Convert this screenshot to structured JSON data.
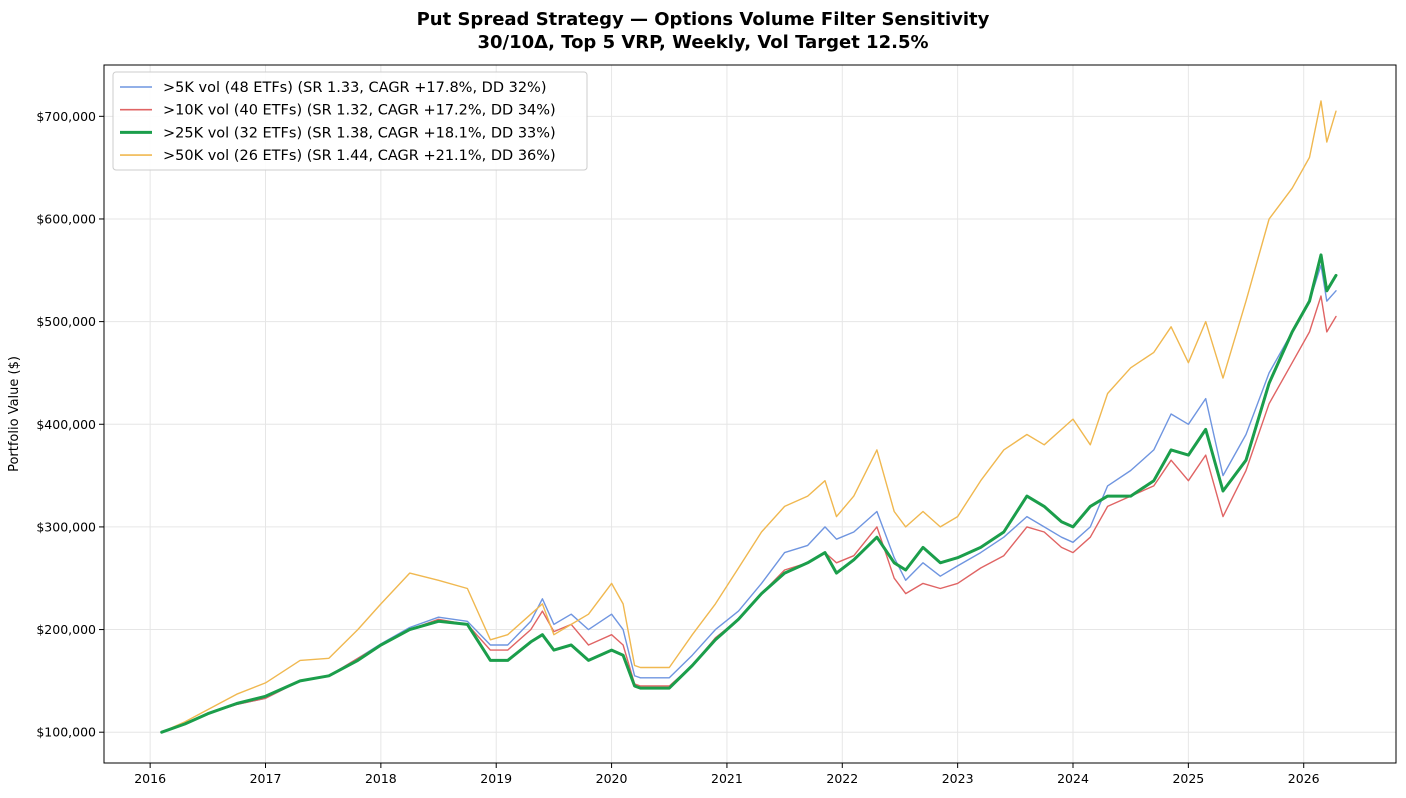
{
  "chart_data": {
    "type": "line",
    "title": "Put Spread Strategy — Options Volume Filter Sensitivity",
    "subtitle": "30/10Δ, Top 5 VRP, Weekly, Vol Target 12.5%",
    "xlabel": "",
    "ylabel": "Portfolio Value ($)",
    "xlim": [
      2015.6,
      2026.8
    ],
    "ylim": [
      70000,
      750000
    ],
    "grid": true,
    "legend_position": "top-left",
    "x_ticks": [
      2016,
      2017,
      2018,
      2019,
      2020,
      2021,
      2022,
      2023,
      2024,
      2025,
      2026
    ],
    "x_tick_labels": [
      "2016",
      "2017",
      "2018",
      "2019",
      "2020",
      "2021",
      "2022",
      "2023",
      "2024",
      "2025",
      "2026"
    ],
    "y_ticks": [
      100000,
      200000,
      300000,
      400000,
      500000,
      600000,
      700000
    ],
    "y_tick_labels": [
      "$100,000",
      "$200,000",
      "$300,000",
      "$400,000",
      "$500,000",
      "$600,000",
      "$700,000"
    ],
    "series": [
      {
        "name": ">5K vol (48 ETFs) (SR 1.33, CAGR +17.8%, DD 32%)",
        "color": "#6f95e0",
        "x": [
          2016.1,
          2016.3,
          2016.5,
          2016.75,
          2017.0,
          2017.3,
          2017.55,
          2017.8,
          2018.0,
          2018.25,
          2018.5,
          2018.75,
          2018.95,
          2019.1,
          2019.3,
          2019.4,
          2019.5,
          2019.65,
          2019.8,
          2020.0,
          2020.1,
          2020.2,
          2020.25,
          2020.5,
          2020.7,
          2020.9,
          2021.1,
          2021.3,
          2021.5,
          2021.7,
          2021.85,
          2021.95,
          2022.1,
          2022.3,
          2022.45,
          2022.55,
          2022.7,
          2022.85,
          2023.0,
          2023.2,
          2023.4,
          2023.6,
          2023.75,
          2023.9,
          2024.0,
          2024.15,
          2024.3,
          2024.5,
          2024.7,
          2024.85,
          2025.0,
          2025.15,
          2025.3,
          2025.5,
          2025.7,
          2025.9,
          2026.05,
          2026.15,
          2026.2,
          2026.28
        ],
        "values": [
          100000,
          108000,
          118000,
          127000,
          133000,
          150000,
          155000,
          172000,
          186000,
          202000,
          212000,
          208000,
          185000,
          185000,
          208000,
          230000,
          205000,
          215000,
          200000,
          215000,
          200000,
          155000,
          153000,
          153000,
          175000,
          200000,
          218000,
          245000,
          275000,
          282000,
          300000,
          288000,
          295000,
          315000,
          270000,
          248000,
          265000,
          252000,
          262000,
          275000,
          290000,
          310000,
          300000,
          290000,
          285000,
          300000,
          340000,
          355000,
          375000,
          410000,
          400000,
          425000,
          350000,
          390000,
          450000,
          490000,
          520000,
          555000,
          520000,
          530000
        ]
      },
      {
        "name": ">10K vol (40 ETFs) (SR 1.32, CAGR +17.2%, DD 34%)",
        "color": "#e06464",
        "x": [
          2016.1,
          2016.3,
          2016.5,
          2016.75,
          2017.0,
          2017.3,
          2017.55,
          2017.8,
          2018.0,
          2018.25,
          2018.5,
          2018.75,
          2018.95,
          2019.1,
          2019.3,
          2019.4,
          2019.5,
          2019.65,
          2019.8,
          2020.0,
          2020.1,
          2020.2,
          2020.25,
          2020.5,
          2020.7,
          2020.9,
          2021.1,
          2021.3,
          2021.5,
          2021.7,
          2021.85,
          2021.95,
          2022.1,
          2022.3,
          2022.45,
          2022.55,
          2022.7,
          2022.85,
          2023.0,
          2023.2,
          2023.4,
          2023.6,
          2023.75,
          2023.9,
          2024.0,
          2024.15,
          2024.3,
          2024.5,
          2024.7,
          2024.85,
          2025.0,
          2025.15,
          2025.3,
          2025.5,
          2025.7,
          2025.9,
          2026.05,
          2026.15,
          2026.2,
          2026.28
        ],
        "values": [
          100000,
          108000,
          118000,
          127000,
          133000,
          150000,
          155000,
          172000,
          185000,
          200000,
          210000,
          205000,
          180000,
          180000,
          200000,
          218000,
          198000,
          205000,
          185000,
          195000,
          185000,
          147000,
          145000,
          145000,
          165000,
          192000,
          210000,
          235000,
          258000,
          265000,
          275000,
          265000,
          272000,
          300000,
          250000,
          235000,
          245000,
          240000,
          245000,
          260000,
          272000,
          300000,
          295000,
          280000,
          275000,
          290000,
          320000,
          330000,
          340000,
          365000,
          345000,
          370000,
          310000,
          355000,
          420000,
          460000,
          490000,
          525000,
          490000,
          505000
        ]
      },
      {
        "name": ">25K vol (32 ETFs) (SR 1.38, CAGR +18.1%, DD 33%)",
        "color": "#1b9e4b",
        "x": [
          2016.1,
          2016.3,
          2016.5,
          2016.75,
          2017.0,
          2017.3,
          2017.55,
          2017.8,
          2018.0,
          2018.25,
          2018.5,
          2018.75,
          2018.95,
          2019.1,
          2019.3,
          2019.4,
          2019.5,
          2019.65,
          2019.8,
          2020.0,
          2020.1,
          2020.2,
          2020.25,
          2020.5,
          2020.7,
          2020.9,
          2021.1,
          2021.3,
          2021.5,
          2021.7,
          2021.85,
          2021.95,
          2022.1,
          2022.3,
          2022.45,
          2022.55,
          2022.7,
          2022.85,
          2023.0,
          2023.2,
          2023.4,
          2023.6,
          2023.75,
          2023.9,
          2024.0,
          2024.15,
          2024.3,
          2024.5,
          2024.7,
          2024.85,
          2025.0,
          2025.15,
          2025.3,
          2025.5,
          2025.7,
          2025.9,
          2026.05,
          2026.15,
          2026.2,
          2026.28
        ],
        "values": [
          100000,
          108000,
          118000,
          128000,
          135000,
          150000,
          155000,
          170000,
          185000,
          200000,
          208000,
          205000,
          170000,
          170000,
          188000,
          195000,
          180000,
          185000,
          170000,
          180000,
          175000,
          145000,
          143000,
          143000,
          165000,
          190000,
          210000,
          235000,
          255000,
          265000,
          275000,
          255000,
          268000,
          290000,
          265000,
          258000,
          280000,
          265000,
          270000,
          280000,
          295000,
          330000,
          320000,
          305000,
          300000,
          320000,
          330000,
          330000,
          345000,
          375000,
          370000,
          395000,
          335000,
          365000,
          440000,
          490000,
          520000,
          565000,
          530000,
          545000
        ]
      },
      {
        "name": ">50K vol (26 ETFs) (SR 1.44, CAGR +21.1%, DD 36%)",
        "color": "#f0b850",
        "x": [
          2016.1,
          2016.3,
          2016.5,
          2016.75,
          2017.0,
          2017.3,
          2017.55,
          2017.8,
          2018.0,
          2018.25,
          2018.5,
          2018.75,
          2018.95,
          2019.1,
          2019.3,
          2019.4,
          2019.5,
          2019.65,
          2019.8,
          2020.0,
          2020.1,
          2020.2,
          2020.25,
          2020.5,
          2020.7,
          2020.9,
          2021.1,
          2021.3,
          2021.5,
          2021.7,
          2021.85,
          2021.95,
          2022.1,
          2022.3,
          2022.45,
          2022.55,
          2022.7,
          2022.85,
          2023.0,
          2023.2,
          2023.4,
          2023.6,
          2023.75,
          2023.9,
          2024.0,
          2024.15,
          2024.3,
          2024.5,
          2024.7,
          2024.85,
          2025.0,
          2025.15,
          2025.3,
          2025.5,
          2025.7,
          2025.9,
          2026.05,
          2026.15,
          2026.2,
          2026.28
        ],
        "values": [
          100000,
          110000,
          122000,
          137000,
          148000,
          170000,
          172000,
          200000,
          225000,
          255000,
          248000,
          240000,
          190000,
          195000,
          215000,
          225000,
          195000,
          205000,
          215000,
          245000,
          225000,
          165000,
          163000,
          163000,
          195000,
          225000,
          260000,
          295000,
          320000,
          330000,
          345000,
          310000,
          330000,
          375000,
          315000,
          300000,
          315000,
          300000,
          310000,
          345000,
          375000,
          390000,
          380000,
          395000,
          405000,
          380000,
          430000,
          455000,
          470000,
          495000,
          460000,
          500000,
          445000,
          520000,
          600000,
          630000,
          660000,
          715000,
          675000,
          705000
        ]
      }
    ]
  }
}
